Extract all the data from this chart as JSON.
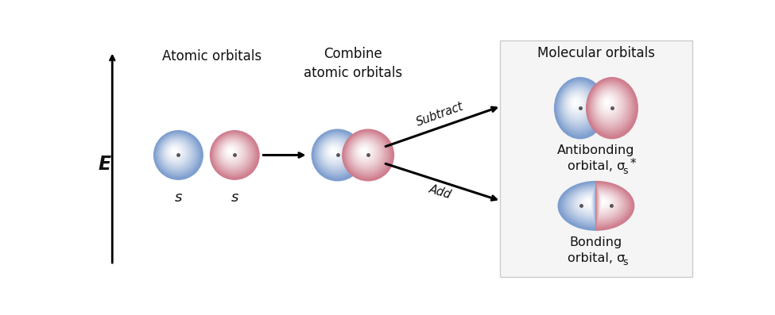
{
  "bg_color": "#ffffff",
  "panel_bg": "#f5f5f5",
  "panel_border": "#cccccc",
  "blue_light": "#aabfe8",
  "blue_mid": "#7799cc",
  "blue_dark": "#5577aa",
  "red_light": "#e8aabb",
  "red_mid": "#cc7788",
  "red_dark": "#aa5566",
  "nucleus_color": "#555555",
  "text_color": "#111111",
  "label_atomic": "Atomic orbitals",
  "label_combine": "Combine\natomic orbitals",
  "label_molecular": "Molecular orbitals",
  "label_s1": "s",
  "label_s2": "s",
  "label_antibonding_line1": "Antibonding",
  "label_antibonding_line2": "orbital, σ",
  "label_antibonding_sub": "s",
  "label_antibonding_star": "*",
  "label_bonding_line1": "Bonding",
  "label_bonding_line2": "orbital, σ",
  "label_bonding_sub": "s",
  "label_subtract": "Subtract",
  "label_add": "Add",
  "label_E": "E",
  "arrow_color": "#000000",
  "axis_lw": 2.0,
  "figw": 9.75,
  "figh": 3.97
}
